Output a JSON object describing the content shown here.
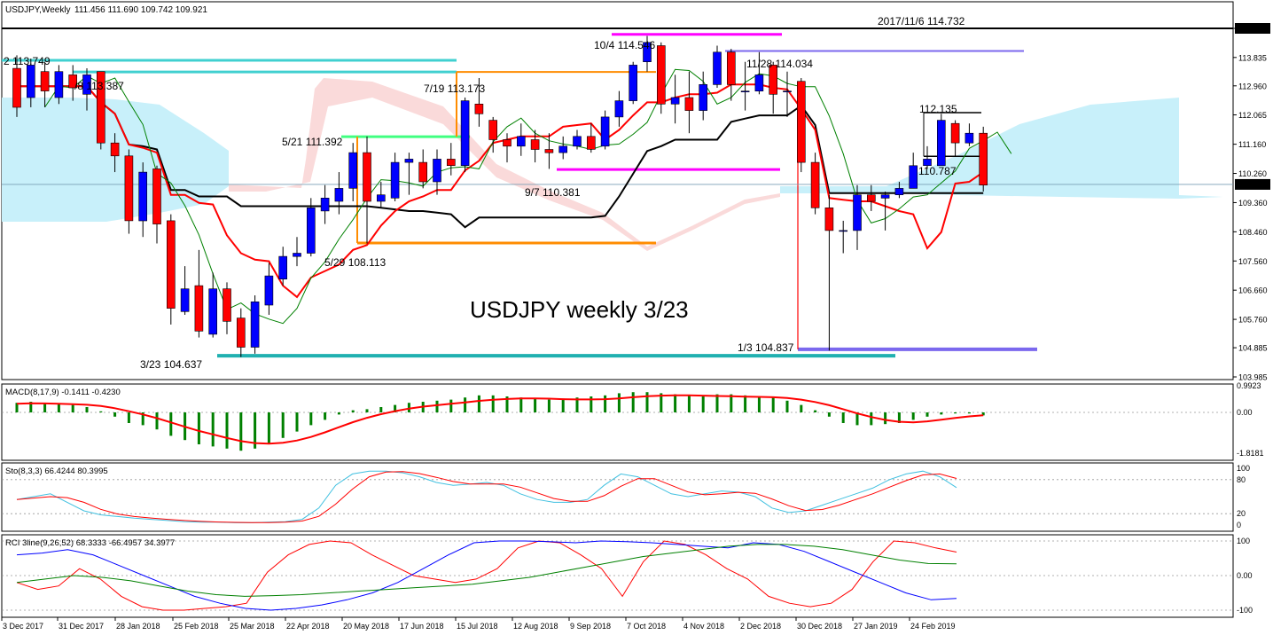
{
  "header": {
    "symbol": "USDJPY,Weekly",
    "ohlc": "111.456 111.690 109.742 109.921"
  },
  "colors": {
    "bull": "#0000ff",
    "bear": "#ff0000",
    "wick": "#000000",
    "tenkan": "#ff0000",
    "kijun": "#000000",
    "chikou": "#008000",
    "kumo": "#c8f0fa",
    "kumo_neg": "#fadada",
    "cyan_line": "#40d0d0",
    "orange_line": "#ff8c00",
    "magenta_line": "#ff00ff",
    "purple_line": "#7b68ee",
    "green_line": "#40ff80",
    "teal_line": "#20b0b0",
    "macd_hist": "#008000",
    "macd_signal": "#ff0000",
    "sto_main": "#40c0e0",
    "sto_signal": "#ff0000",
    "rci_short": "#ff0000",
    "rci_mid": "#0000ff",
    "rci_long": "#008000"
  },
  "main": {
    "title": "USDJPY weekly 3/23",
    "price_axis": [
      "114.732",
      "113.835",
      "112.960",
      "112.065",
      "111.160",
      "110.260",
      "109.360",
      "108.460",
      "107.560",
      "106.660",
      "105.760",
      "104.885",
      "103.985"
    ],
    "current_price": "109.921",
    "annotations": [
      {
        "id": "a1",
        "text": "2017/11/6 114.732"
      },
      {
        "id": "a2",
        "text": "10/4 114.546"
      },
      {
        "id": "a3",
        "text": "11/28 114.034"
      },
      {
        "id": "a4",
        "text": "2 113.749"
      },
      {
        "id": "a5",
        "text": "/8 113.387"
      },
      {
        "id": "a6",
        "text": "7/19 113.173"
      },
      {
        "id": "a7",
        "text": "112.135"
      },
      {
        "id": "a8",
        "text": "5/21 111.392"
      },
      {
        "id": "a9",
        "text": "110.787"
      },
      {
        "id": "a10",
        "text": "9/7 110.381"
      },
      {
        "id": "a11",
        "text": "5/29 108.113"
      },
      {
        "id": "a12",
        "text": "1/3 104.837"
      },
      {
        "id": "a13",
        "text": "3/23 104.637"
      }
    ]
  },
  "macd": {
    "label": "MACD(8,17,9) -0.1411 -0.4230",
    "axis": [
      "0.9923",
      "0.00",
      "-1.8181"
    ]
  },
  "sto": {
    "label": "Sto(8,3,3) 66.4244 80.3995",
    "axis": [
      "100",
      "80",
      "20",
      "0"
    ]
  },
  "rci": {
    "label": "RCI 3line(9,26,52) 68.3333 -66.4957 34.3977",
    "axis": [
      "100",
      "0.00",
      "-100"
    ]
  },
  "time_axis": [
    "3 Dec 2017",
    "31 Dec 2017",
    "28 Jan 2018",
    "25 Feb 2018",
    "25 Mar 2018",
    "22 Apr 2018",
    "20 May 2018",
    "17 Jun 2018",
    "15 Jul 2018",
    "12 Aug 2018",
    "9 Sep 2018",
    "7 Oct 2018",
    "4 Nov 2018",
    "2 Dec 2018",
    "30 Dec 2018",
    "27 Jan 2019",
    "24 Feb 2019"
  ],
  "chart_data": {
    "type": "candlestick",
    "timeframe": "weekly",
    "symbol": "USDJPY",
    "ylim": [
      103.985,
      114.732
    ],
    "candles": [
      [
        113.5,
        112.3,
        113.9,
        112.0
      ],
      [
        112.6,
        113.6,
        113.8,
        112.3
      ],
      [
        113.4,
        112.8,
        113.7,
        112.3
      ],
      [
        112.6,
        113.4,
        113.6,
        112.4
      ],
      [
        113.3,
        112.9,
        113.6,
        112.5
      ],
      [
        112.7,
        113.3,
        113.5,
        112.2
      ],
      [
        113.4,
        111.2,
        113.4,
        111.0
      ],
      [
        111.2,
        110.8,
        111.5,
        110.3
      ],
      [
        110.8,
        108.8,
        111.0,
        108.4
      ],
      [
        108.8,
        110.3,
        110.6,
        108.3
      ],
      [
        110.4,
        108.7,
        110.5,
        108.1
      ],
      [
        108.8,
        106.1,
        109.0,
        105.6
      ],
      [
        106.0,
        106.7,
        107.4,
        105.9
      ],
      [
        106.8,
        105.4,
        107.9,
        105.2
      ],
      [
        105.3,
        106.7,
        107.2,
        105.2
      ],
      [
        106.7,
        105.7,
        106.9,
        105.3
      ],
      [
        105.8,
        104.9,
        106.1,
        104.6
      ],
      [
        104.9,
        106.3,
        106.5,
        104.7
      ],
      [
        106.2,
        107.1,
        107.5,
        105.9
      ],
      [
        107.0,
        107.7,
        108.0,
        106.8
      ],
      [
        107.7,
        107.8,
        108.3,
        107.4
      ],
      [
        107.8,
        109.2,
        109.5,
        107.7
      ],
      [
        109.1,
        109.5,
        109.9,
        108.7
      ],
      [
        109.4,
        109.8,
        110.3,
        109.0
      ],
      [
        109.8,
        110.9,
        111.2,
        109.4
      ],
      [
        110.9,
        109.4,
        111.4,
        108.1
      ],
      [
        109.4,
        109.6,
        110.0,
        109.2
      ],
      [
        109.5,
        110.6,
        110.9,
        109.4
      ],
      [
        110.6,
        110.7,
        110.9,
        109.6
      ],
      [
        110.6,
        110.0,
        111.0,
        109.8
      ],
      [
        110.0,
        110.7,
        111.0,
        109.6
      ],
      [
        110.7,
        110.5,
        111.2,
        110.2
      ],
      [
        110.5,
        112.5,
        112.6,
        110.3
      ],
      [
        112.4,
        112.1,
        113.2,
        111.7
      ],
      [
        111.9,
        111.3,
        112.0,
        110.9
      ],
      [
        111.3,
        111.1,
        111.5,
        110.6
      ],
      [
        111.1,
        111.4,
        111.8,
        110.8
      ],
      [
        111.3,
        111.0,
        111.6,
        110.6
      ],
      [
        111.0,
        110.9,
        111.5,
        110.4
      ],
      [
        110.9,
        111.1,
        111.4,
        110.7
      ],
      [
        111.1,
        111.4,
        111.6,
        111.0
      ],
      [
        111.4,
        111.0,
        111.8,
        110.9
      ],
      [
        111.1,
        112.0,
        112.2,
        111.0
      ],
      [
        112.0,
        112.5,
        112.8,
        111.7
      ],
      [
        112.5,
        113.6,
        113.7,
        112.4
      ],
      [
        113.7,
        114.3,
        114.5,
        113.4
      ],
      [
        114.2,
        112.4,
        114.3,
        112.1
      ],
      [
        112.4,
        112.6,
        113.3,
        111.8
      ],
      [
        112.6,
        112.2,
        113.4,
        111.5
      ],
      [
        112.2,
        113.0,
        113.4,
        111.9
      ],
      [
        113.0,
        114.0,
        114.2,
        112.9
      ],
      [
        114.0,
        113.0,
        114.1,
        112.5
      ],
      [
        112.8,
        112.8,
        113.7,
        112.2
      ],
      [
        112.8,
        113.3,
        114.0,
        112.7
      ],
      [
        113.6,
        112.7,
        113.7,
        112.1
      ],
      [
        112.8,
        112.8,
        113.4,
        112.0
      ],
      [
        113.1,
        110.6,
        113.2,
        110.3
      ],
      [
        110.6,
        109.2,
        110.9,
        109.0
      ],
      [
        109.2,
        108.5,
        109.6,
        104.8
      ],
      [
        108.5,
        108.5,
        108.8,
        107.8
      ],
      [
        108.5,
        109.6,
        109.9,
        107.9
      ],
      [
        109.6,
        109.4,
        109.9,
        109.1
      ],
      [
        109.5,
        109.6,
        109.7,
        108.5
      ],
      [
        109.6,
        109.8,
        110.0,
        109.5
      ],
      [
        109.8,
        110.5,
        110.9,
        109.8
      ],
      [
        110.5,
        110.7,
        111.1,
        110.4
      ],
      [
        110.5,
        111.9,
        112.1,
        110.5
      ],
      [
        111.8,
        111.2,
        111.9,
        110.8
      ],
      [
        111.2,
        111.5,
        111.8,
        111.1
      ],
      [
        111.5,
        109.9,
        111.7,
        109.7
      ]
    ],
    "horizontal_levels": [
      {
        "label": "2017/11/6 114.732",
        "value": 114.732
      },
      {
        "label": "10/4 114.546",
        "value": 114.546
      },
      {
        "label": "11/28 114.034",
        "value": 114.034
      },
      {
        "label": "2 113.749",
        "value": 113.749
      },
      {
        "label": "/8 113.387",
        "value": 113.387
      },
      {
        "label": "112.135",
        "value": 112.135
      },
      {
        "label": "5/21 111.392",
        "value": 111.392
      },
      {
        "label": "110.787",
        "value": 110.787
      },
      {
        "label": "9/7 110.381",
        "value": 110.381
      },
      {
        "label": "5/29 108.113",
        "value": 108.113
      },
      {
        "label": "1/3 104.837",
        "value": 104.837
      },
      {
        "label": "3/23 104.637",
        "value": 104.637
      }
    ],
    "current_price": 109.921
  }
}
